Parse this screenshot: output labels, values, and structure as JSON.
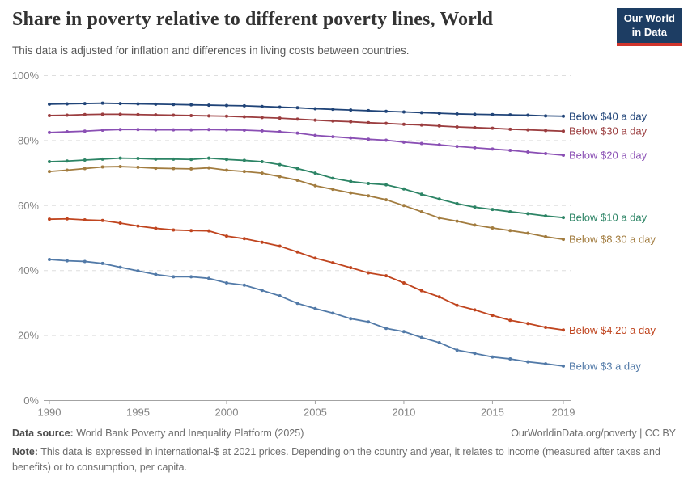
{
  "header": {
    "title": "Share in poverty relative to different poverty lines, World",
    "subtitle": "This data is adjusted for inflation and differences in living costs between countries.",
    "logo": {
      "line1": "Our World",
      "line2": "in Data",
      "bg_color": "#1D3D63",
      "bar_color": "#D0342C"
    }
  },
  "footer": {
    "datasource_label": "Data source:",
    "datasource_text": " World Bank Poverty and Inequality Platform (2025)",
    "link_text": "OurWorldinData.org/poverty",
    "separator": " | ",
    "license": "CC BY",
    "note_label": "Note:",
    "note_text": " This data is expressed in international-$ at 2021 prices. Depending on the country and year, it relates to income (measured after taxes and benefits) or to consumption, per capita."
  },
  "chart_data": {
    "type": "line",
    "title": "Share in poverty relative to different poverty lines, World",
    "unit": "%",
    "ylim": [
      0,
      100
    ],
    "yticks": [
      0,
      20,
      40,
      60,
      80,
      100
    ],
    "xticks": [
      1990,
      1995,
      2000,
      2005,
      2010,
      2015,
      2019
    ],
    "grid": "horizontal-dashed",
    "legend_position": "right-end-labels",
    "markers": true,
    "x": [
      1990,
      1991,
      1992,
      1993,
      1994,
      1995,
      1996,
      1997,
      1998,
      1999,
      2000,
      2001,
      2002,
      2003,
      2004,
      2005,
      2006,
      2007,
      2008,
      2009,
      2010,
      2011,
      2012,
      2013,
      2014,
      2015,
      2016,
      2017,
      2018,
      2019
    ],
    "series": [
      {
        "id": "below-40-a-day",
        "name": "Below $40 a day",
        "color": "#204478",
        "values": [
          91.2,
          91.3,
          91.4,
          91.5,
          91.4,
          91.3,
          91.2,
          91.1,
          91.0,
          90.9,
          90.8,
          90.7,
          90.5,
          90.3,
          90.1,
          89.8,
          89.6,
          89.4,
          89.2,
          89.0,
          88.8,
          88.6,
          88.4,
          88.2,
          88.1,
          88.0,
          87.9,
          87.8,
          87.6,
          87.5
        ]
      },
      {
        "id": "below-30-a-day",
        "name": "Below $30 a day",
        "color": "#9B3D3F",
        "values": [
          87.7,
          87.8,
          88.0,
          88.1,
          88.1,
          88.0,
          87.9,
          87.8,
          87.7,
          87.6,
          87.5,
          87.3,
          87.1,
          86.9,
          86.6,
          86.3,
          86.0,
          85.8,
          85.5,
          85.3,
          85.0,
          84.8,
          84.5,
          84.2,
          84.0,
          83.8,
          83.5,
          83.3,
          83.1,
          82.9
        ]
      },
      {
        "id": "below-20-a-day",
        "name": "Below $20 a day",
        "color": "#8A4FB4",
        "values": [
          82.5,
          82.7,
          82.9,
          83.2,
          83.4,
          83.4,
          83.3,
          83.3,
          83.3,
          83.4,
          83.3,
          83.2,
          83.0,
          82.7,
          82.3,
          81.6,
          81.2,
          80.8,
          80.4,
          80.1,
          79.5,
          79.1,
          78.7,
          78.2,
          77.8,
          77.4,
          77.0,
          76.5,
          76.0,
          75.5
        ]
      },
      {
        "id": "below-10-a-day",
        "name": "Below $10 a day",
        "color": "#2C8465",
        "values": [
          73.5,
          73.7,
          74.0,
          74.3,
          74.6,
          74.5,
          74.3,
          74.3,
          74.2,
          74.6,
          74.2,
          73.9,
          73.5,
          72.6,
          71.4,
          70.0,
          68.4,
          67.4,
          66.8,
          66.4,
          65.1,
          63.5,
          62.0,
          60.6,
          59.5,
          58.8,
          58.1,
          57.5,
          56.8,
          56.3
        ]
      },
      {
        "id": "below-8-30-a-day",
        "name": "Below $8.30 a day",
        "color": "#A27C3F",
        "values": [
          70.5,
          70.9,
          71.4,
          71.9,
          72.0,
          71.8,
          71.5,
          71.4,
          71.3,
          71.6,
          70.9,
          70.5,
          70.0,
          68.9,
          67.8,
          66.1,
          65.0,
          63.9,
          63.0,
          61.8,
          60.0,
          58.1,
          56.2,
          55.2,
          54.0,
          53.1,
          52.3,
          51.5,
          50.4,
          49.6
        ]
      },
      {
        "id": "below-4-20-a-day",
        "name": "Below $4.20 a day",
        "color": "#C0451F",
        "values": [
          55.8,
          55.9,
          55.6,
          55.4,
          54.6,
          53.7,
          53.0,
          52.5,
          52.3,
          52.2,
          50.6,
          49.8,
          48.7,
          47.5,
          45.7,
          43.8,
          42.4,
          40.9,
          39.3,
          38.4,
          36.2,
          33.8,
          31.9,
          29.3,
          27.9,
          26.2,
          24.7,
          23.7,
          22.5,
          21.7
        ]
      },
      {
        "id": "below-3-a-day",
        "name": "Below $3 a day",
        "color": "#527AA8",
        "values": [
          43.4,
          43.0,
          42.8,
          42.2,
          41.0,
          39.9,
          38.8,
          38.1,
          38.1,
          37.6,
          36.2,
          35.5,
          33.9,
          32.2,
          29.9,
          28.3,
          26.9,
          25.2,
          24.2,
          22.2,
          21.2,
          19.4,
          17.8,
          15.5,
          14.5,
          13.4,
          12.8,
          11.9,
          11.3,
          10.6
        ]
      }
    ]
  }
}
